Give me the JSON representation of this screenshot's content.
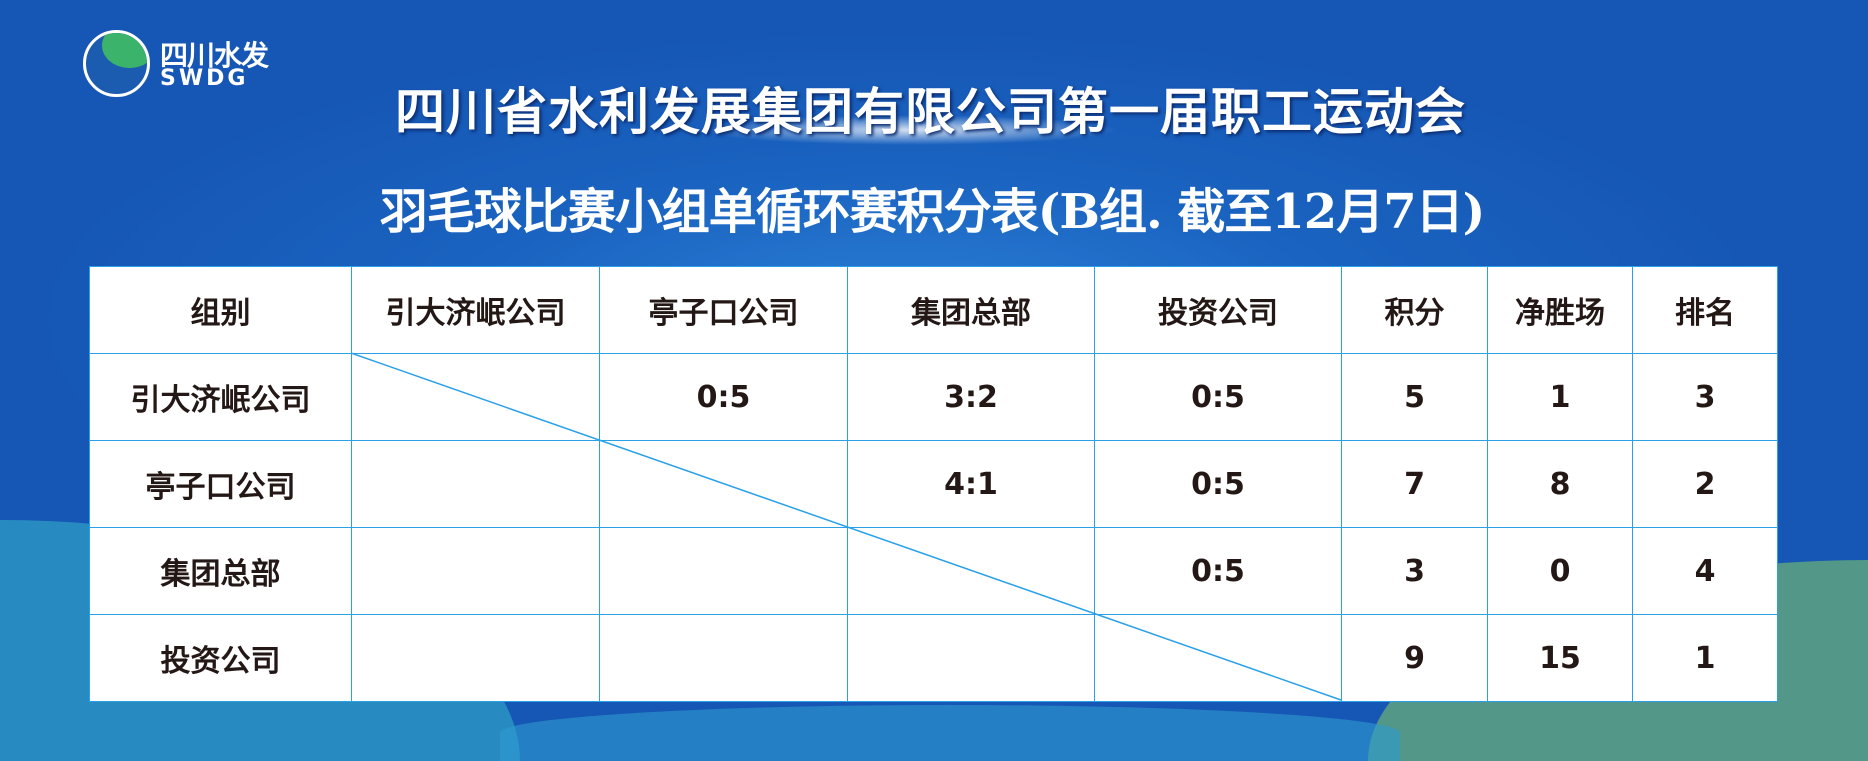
{
  "logo": {
    "cn": "四川水发",
    "en": "SWDG"
  },
  "title": "四川省水利发展集团有限公司第一届职工运动会",
  "subtitle": "羽毛球比赛小组单循环赛积分表(B组. 截至12月7日)",
  "table": {
    "headers": [
      "组别",
      "引大济岷公司",
      "亭子口公司",
      "集团总部",
      "投资公司",
      "积分",
      "净胜场",
      "排名"
    ],
    "rows": [
      [
        "引大济岷公司",
        "",
        "0:5",
        "3:2",
        "0:5",
        "5",
        "1",
        "3"
      ],
      [
        "亭子口公司",
        "",
        "",
        "4:1",
        "0:5",
        "7",
        "8",
        "2"
      ],
      [
        "集团总部",
        "",
        "",
        "",
        "0:5",
        "3",
        "0",
        "4"
      ],
      [
        "投资公司",
        "",
        "",
        "",
        "",
        "9",
        "15",
        "1"
      ]
    ]
  },
  "colors": {
    "background": "#1a63c0",
    "grid": "#2aa0e8",
    "text": "#231815"
  }
}
